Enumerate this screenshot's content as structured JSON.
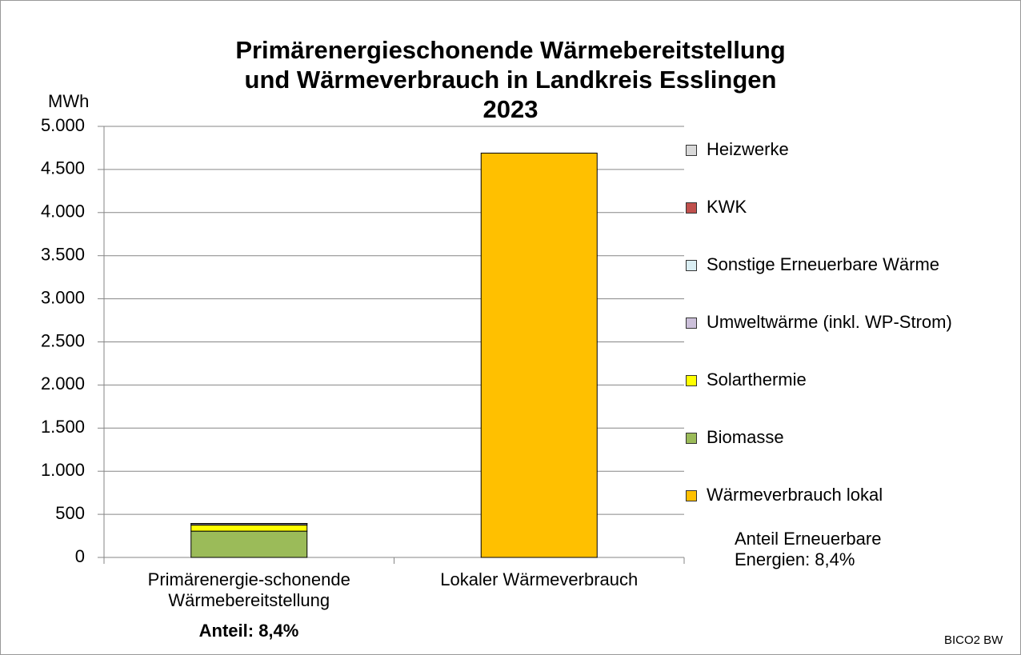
{
  "chart_data": {
    "type": "stacked_bar",
    "title": [
      "Primärenergieschonende Wärmebereitstellung",
      "und Wärmeverbrauch in Landkreis Esslingen",
      "2023"
    ],
    "y_label": "MWh",
    "categories": [
      "Primärenergie-schonende Wärmebereitstellung",
      "Lokaler Wärmeverbrauch"
    ],
    "series": [
      {
        "name": "Wärmeverbrauch lokal",
        "color": "#FFC000",
        "values": [
          0,
          4690
        ]
      },
      {
        "name": "Biomasse",
        "color": "#9BBB59",
        "values": [
          305,
          0
        ]
      },
      {
        "name": "Solarthermie",
        "color": "#FFFF00",
        "values": [
          70,
          0
        ]
      },
      {
        "name": "Umweltwärme (inkl. WP-Strom)",
        "color": "#CCC0DA",
        "values": [
          16,
          0
        ]
      },
      {
        "name": "Sonstige Erneuerbare Wärme",
        "color": "#DAEEF3",
        "values": [
          2,
          0
        ]
      },
      {
        "name": "KWK",
        "color": "#C0504D",
        "values": [
          1,
          0
        ]
      },
      {
        "name": "Heizwerke",
        "color": "#D9D9D9",
        "values": [
          0,
          0
        ]
      }
    ],
    "ylim": [
      0,
      5000
    ],
    "yticks": [
      0,
      500,
      {
        "value": 1000,
        "label": "1.000"
      },
      {
        "value": 1500,
        "label": "1.500"
      },
      {
        "value": 2000,
        "label": "2.000"
      },
      {
        "value": 2500,
        "label": "2.500"
      },
      {
        "value": 3000,
        "label": "3.000"
      },
      {
        "value": 3500,
        "label": "3.500"
      },
      {
        "value": 4000,
        "label": "4.000"
      },
      {
        "value": 4500,
        "label": "4.500"
      },
      {
        "value": 5000,
        "label": "5.000"
      }
    ],
    "grid": true,
    "legend": "right",
    "annotations": [
      "Anteil: 8,4%",
      "Anteil Erneuerbare Energien: 8,4%"
    ],
    "source": "BICO2 BW"
  }
}
